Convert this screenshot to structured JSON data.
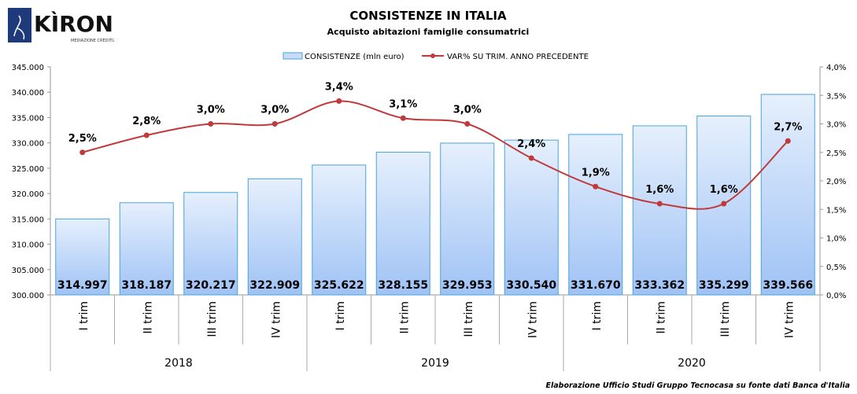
{
  "logo": {
    "text": "KÌRON",
    "subtitle": "MEDIAZIONE CREDITIZIA"
  },
  "chart_data": {
    "type": "bar+line",
    "title": "CONSISTENZE IN ITALIA",
    "subtitle": "Acquisto abitazioni famiglie consumatrici",
    "categories": [
      "I trim",
      "II trim",
      "III trim",
      "IV trim",
      "I trim",
      "II trim",
      "III trim",
      "IV trim",
      "I trim",
      "II trim",
      "III trim",
      "IV trim"
    ],
    "groups": [
      {
        "label": "2018",
        "span": 4
      },
      {
        "label": "2019",
        "span": 4
      },
      {
        "label": "2020",
        "span": 4
      }
    ],
    "series": [
      {
        "name": "CONSISTENZE (mln euro)",
        "type": "bar",
        "axis": "left",
        "color": "#a9c9f5",
        "values": [
          314997,
          318187,
          320217,
          322909,
          325622,
          328155,
          329953,
          330540,
          331670,
          333362,
          335299,
          339566
        ],
        "labels": [
          "314.997",
          "318.187",
          "320.217",
          "322.909",
          "325.622",
          "328.155",
          "329.953",
          "330.540",
          "331.670",
          "333.362",
          "335.299",
          "339.566"
        ]
      },
      {
        "name": "VAR% SU TRIM. ANNO PRECEDENTE",
        "type": "line",
        "axis": "right",
        "color": "#c0393b",
        "values": [
          2.5,
          2.8,
          3.0,
          3.0,
          3.4,
          3.1,
          3.0,
          2.4,
          1.9,
          1.6,
          1.6,
          2.7
        ],
        "labels": [
          "2,5%",
          "2,8%",
          "3,0%",
          "3,0%",
          "3,4%",
          "3,1%",
          "3,0%",
          "2,4%",
          "1,9%",
          "1,6%",
          "1,6%",
          "2,7%"
        ]
      }
    ],
    "y_left": {
      "range": [
        300000,
        345000
      ],
      "ticks": [
        "300.000",
        "305.000",
        "310.000",
        "315.000",
        "320.000",
        "325.000",
        "330.000",
        "335.000",
        "340.000",
        "345.000"
      ]
    },
    "y_right": {
      "range": [
        0,
        4
      ],
      "ticks": [
        "0,0%",
        "0,5%",
        "1,0%",
        "1,5%",
        "2,0%",
        "2,5%",
        "3,0%",
        "3,5%",
        "4,0%"
      ]
    },
    "grid": false,
    "legend": "top-center",
    "source": "Elaborazione Ufficio Studi Gruppo Tecnocasa su fonte dati Banca d'Italia"
  }
}
